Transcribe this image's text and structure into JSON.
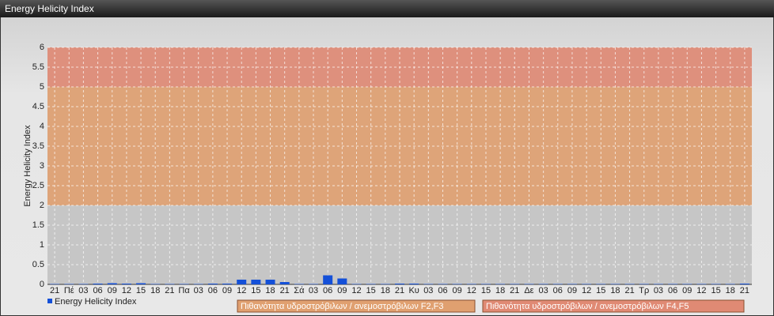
{
  "chart_data": {
    "type": "bar",
    "title": "Energy Helicity Index",
    "y_label": "Energy Helicity Index",
    "categories": [
      "21",
      "Πέ",
      "03",
      "06",
      "09",
      "12",
      "15",
      "18",
      "21",
      "Πα",
      "03",
      "06",
      "09",
      "12",
      "15",
      "18",
      "21",
      "Σά",
      "03",
      "06",
      "09",
      "12",
      "15",
      "18",
      "21",
      "Κυ",
      "03",
      "06",
      "09",
      "12",
      "15",
      "18",
      "21",
      "Δε",
      "03",
      "06",
      "09",
      "12",
      "15",
      "18",
      "21",
      "Τρ",
      "03",
      "06",
      "09",
      "12",
      "15",
      "18",
      "21"
    ],
    "series": [
      {
        "name": "Energy Helicity Index",
        "color": "#1450d8",
        "values": [
          0.01,
          0.01,
          0.01,
          0.02,
          0.03,
          0.02,
          0.03,
          0.01,
          0.01,
          0.01,
          0.01,
          0.02,
          0.02,
          0.12,
          0.12,
          0.12,
          0.06,
          0.01,
          0.01,
          0.23,
          0.15,
          0.01,
          0.01,
          0.01,
          0.02,
          0.02,
          0.01,
          0.01,
          0.01,
          0.01,
          0.01,
          0.01,
          0.01,
          0.01,
          0.01,
          0.01,
          0.01,
          0.01,
          0.01,
          0.01,
          0.01,
          0.01,
          0.01,
          0.01,
          0.01,
          0.01,
          0.01,
          0.01,
          0.02
        ]
      }
    ],
    "ylim": [
      0,
      6
    ],
    "yticks": [
      0,
      0.5,
      1,
      1.5,
      2,
      2.5,
      3,
      3.5,
      4,
      4.5,
      5,
      5.5,
      6
    ],
    "grid": true,
    "bands": [
      {
        "name": "Πιθανότητα υδροστρόβιλων / ανεμοστρόβιλων F2,F3",
        "from": 2,
        "to": 5,
        "color": "#e0a070"
      },
      {
        "name": "Πιθανότητα υδροστρόβιλων / ανεμοστρόβιλων F4,F5",
        "from": 5,
        "to": 6,
        "color": "#e08a74"
      }
    ]
  }
}
